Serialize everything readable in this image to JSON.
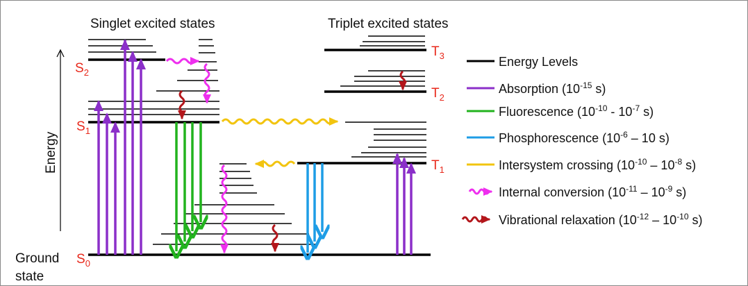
{
  "headings": {
    "singlet": "Singlet excited states",
    "triplet": "Triplet excited states"
  },
  "axis": {
    "energy": "Energy",
    "ground_line1": "Ground",
    "ground_line2": "state"
  },
  "levels": {
    "s0": {
      "base": "S",
      "sub": "0"
    },
    "s1": {
      "base": "S",
      "sub": "1"
    },
    "s2": {
      "base": "S",
      "sub": "2"
    },
    "t1": {
      "base": "T",
      "sub": "1"
    },
    "t2": {
      "base": "T",
      "sub": "2"
    },
    "t3": {
      "base": "T",
      "sub": "3"
    }
  },
  "legend": {
    "energy_levels": {
      "text": "Energy Levels"
    },
    "absorption": {
      "pre": "Absorption (10",
      "sup1": "-15",
      "post": " s)"
    },
    "fluorescence": {
      "pre": "Fluorescence (10",
      "sup1": "-10",
      "mid": " - 10",
      "sup2": "-7",
      "post": " s)"
    },
    "phosphorescence": {
      "pre": "Phosphorescence (10",
      "sup1": "-6",
      "mid": " – 10 s)"
    },
    "isc": {
      "pre": "Intersystem crossing (10",
      "sup1": "-10",
      "mid": " – 10",
      "sup2": "-8",
      "post": " s)"
    },
    "ic": {
      "pre": "Internal conversion (10",
      "sup1": "-11",
      "mid": " – 10",
      "sup2": "-9",
      "post": " s)"
    },
    "vr": {
      "pre": "Vibrational relaxation (10",
      "sup1": "-12",
      "mid": " – 10",
      "sup2": "-10",
      "post": " s)"
    }
  },
  "colors": {
    "level": "#000000",
    "state_label": "#e8291c",
    "absorption": "#8b2fc9",
    "fluorescence": "#22b31e",
    "phosphorescence": "#1e9de6",
    "isc": "#f2c40f",
    "ic": "#ee2fee",
    "vr": "#b3161b"
  },
  "icons": {
    "absorption": "purple-arrow-icon",
    "fluorescence": "green-arrow-icon",
    "phosphorescence": "blue-arrow-icon",
    "isc": "yellow-wavy-arrow-icon",
    "ic": "magenta-wavy-arrow-icon",
    "vr": "red-wavy-arrow-icon"
  }
}
